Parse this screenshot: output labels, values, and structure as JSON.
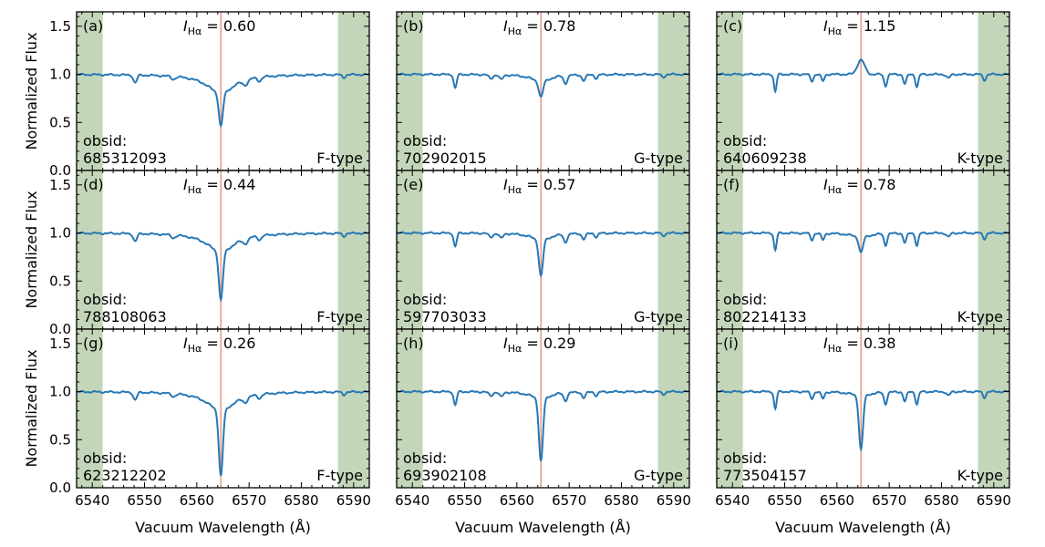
{
  "chart_data": {
    "type": "line",
    "xlabel": "Vacuum Wavelength (Å)",
    "ylabel": "Normalized Flux",
    "xlim": [
      6537,
      6593
    ],
    "ylim": [
      0,
      1.65
    ],
    "xticks": [
      6540,
      6550,
      6560,
      6570,
      6580,
      6590
    ],
    "yticks": [
      0.0,
      0.5,
      1.0,
      1.5
    ],
    "ytick_labels": [
      "0.0",
      "0.5",
      "1.0",
      "1.5"
    ],
    "halpha_line": 6564.6,
    "continuum_bands": [
      [
        6537,
        6542
      ],
      [
        6587,
        6593
      ]
    ],
    "index_label": "I",
    "index_subscript": "Hα",
    "obsid_label": "obsid:",
    "colors": {
      "spectrum": "#2878b5",
      "halpha_line": "#e8a08f",
      "band": "#c3d6b9"
    },
    "panels": [
      {
        "label": "(a)",
        "index": "= 0.60",
        "obsid": "685312093",
        "type": "F-type",
        "class": "F",
        "emission": false,
        "depth": 0.4
      },
      {
        "label": "(b)",
        "index": "= 0.78",
        "obsid": "702902015",
        "type": "G-type",
        "class": "G",
        "emission": false,
        "depth": 0.22
      },
      {
        "label": "(c)",
        "index": "= 1.15",
        "obsid": "640609238",
        "type": "K-type",
        "class": "K",
        "emission": true,
        "depth": 0.15
      },
      {
        "label": "(d)",
        "index": "= 0.44",
        "obsid": "788108063",
        "type": "F-type",
        "class": "F",
        "emission": false,
        "depth": 0.56
      },
      {
        "label": "(e)",
        "index": "= 0.57",
        "obsid": "597703033",
        "type": "G-type",
        "class": "G",
        "emission": false,
        "depth": 0.43
      },
      {
        "label": "(f)",
        "index": "= 0.78",
        "obsid": "802214133",
        "type": "K-type",
        "class": "K",
        "emission": false,
        "depth": 0.22
      },
      {
        "label": "(g)",
        "index": "= 0.26",
        "obsid": "623212202",
        "type": "F-type",
        "class": "F",
        "emission": false,
        "depth": 0.74
      },
      {
        "label": "(h)",
        "index": "= 0.29",
        "obsid": "693902108",
        "type": "G-type",
        "class": "G",
        "emission": false,
        "depth": 0.71
      },
      {
        "label": "(i)",
        "index": "= 0.38",
        "obsid": "773504157",
        "type": "K-type",
        "class": "K",
        "emission": false,
        "depth": 0.62
      }
    ]
  }
}
